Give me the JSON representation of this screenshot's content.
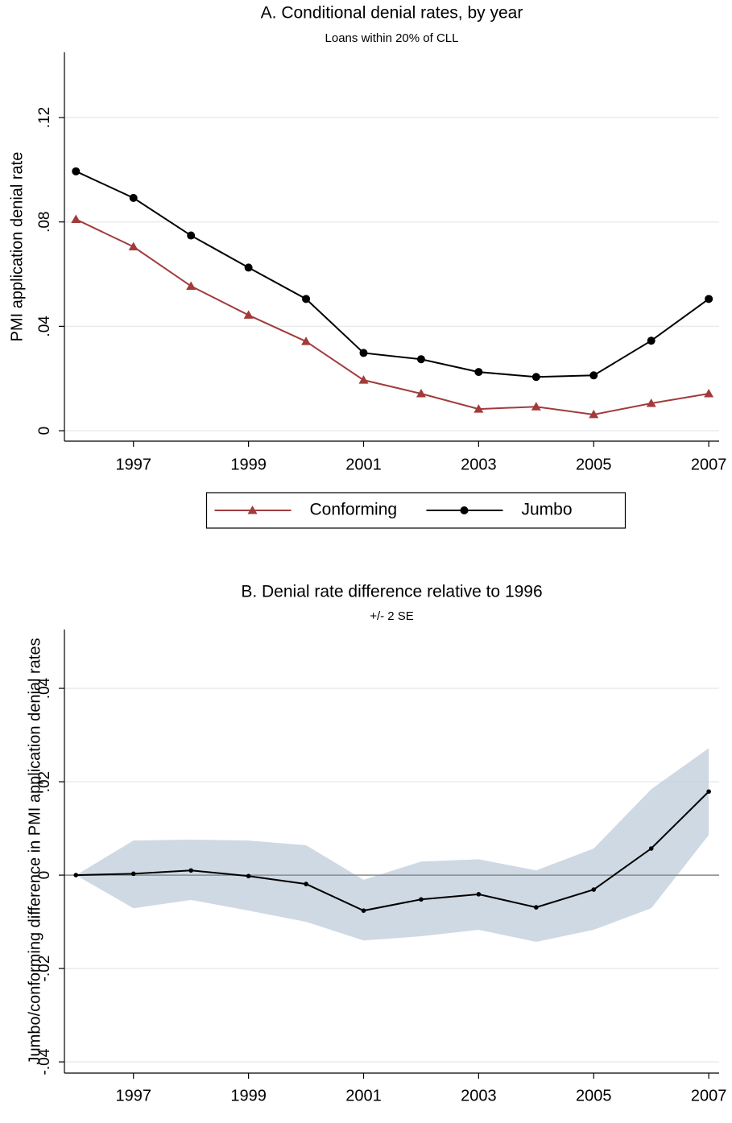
{
  "chart_data": [
    {
      "type": "line",
      "title": "A. Conditional denial rates, by year",
      "subtitle": "Loans within 20% of CLL",
      "y_label": "PMI application denial rate",
      "x": [
        1996,
        1997,
        1998,
        1999,
        2000,
        2001,
        2002,
        2003,
        2004,
        2005,
        2006,
        2007
      ],
      "xlim": [
        1995.8,
        2007.18
      ],
      "xticks": [
        1997,
        1999,
        2001,
        2003,
        2005,
        2007
      ],
      "ylim": [
        -0.004,
        0.145
      ],
      "yticks": [
        0,
        {
          "value": 0.04,
          "label": ".04"
        },
        {
          "value": 0.08,
          "label": ".08"
        },
        {
          "value": 0.12,
          "label": ".12"
        }
      ],
      "grid": true,
      "legend": "bottom",
      "series": [
        {
          "name": "Conforming",
          "color": "#a23b3b",
          "marker": "triangle",
          "values": [
            0.081,
            0.0705,
            0.0554,
            0.0443,
            0.0342,
            0.0194,
            0.0142,
            0.0083,
            0.0092,
            0.0062,
            0.0105,
            0.0142
          ]
        },
        {
          "name": "Jumbo",
          "color": "#000000",
          "marker": "circle",
          "values": [
            0.0994,
            0.0892,
            0.0748,
            0.0625,
            0.0505,
            0.0298,
            0.0274,
            0.0225,
            0.0206,
            0.0212,
            0.0345,
            0.0505
          ]
        }
      ]
    },
    {
      "type": "line",
      "title": "B. Denial rate difference relative to 1996",
      "subtitle": "+/- 2 SE",
      "y_label": "Jumbo/conforming difference in PMI application denial rates",
      "x": [
        1996,
        1997,
        1998,
        1999,
        2000,
        2001,
        2002,
        2003,
        2004,
        2005,
        2006,
        2007
      ],
      "xlim": [
        1995.8,
        2007.18
      ],
      "xticks": [
        1997,
        1999,
        2001,
        2003,
        2005,
        2007
      ],
      "ylim": [
        -0.0424,
        0.0526
      ],
      "yticks": [
        {
          "value": -0.04,
          "label": "-.04"
        },
        {
          "value": -0.02,
          "label": "-.02"
        },
        0,
        {
          "value": 0.02,
          "label": ".02"
        },
        {
          "value": 0.04,
          "label": ".04"
        }
      ],
      "grid": true,
      "zero_line": true,
      "band": {
        "color": "#c5d2df",
        "upper": [
          0,
          0.0074,
          0.0076,
          0.0074,
          0.0064,
          -0.001,
          0.0029,
          0.0034,
          0.001,
          0.0057,
          0.0184,
          0.0272
        ],
        "lower": [
          0,
          -0.0071,
          -0.0053,
          -0.0076,
          -0.01,
          -0.014,
          -0.0131,
          -0.0117,
          -0.0143,
          -0.0117,
          -0.0071,
          0.0086
        ]
      },
      "series": [
        {
          "color": "#000000",
          "marker": "small-circle",
          "values": [
            0,
            0.0003,
            0.001,
            -0.0002,
            -0.0019,
            -0.0076,
            -0.0052,
            -0.0041,
            -0.0069,
            -0.0031,
            0.0057,
            0.0179
          ]
        }
      ]
    }
  ]
}
